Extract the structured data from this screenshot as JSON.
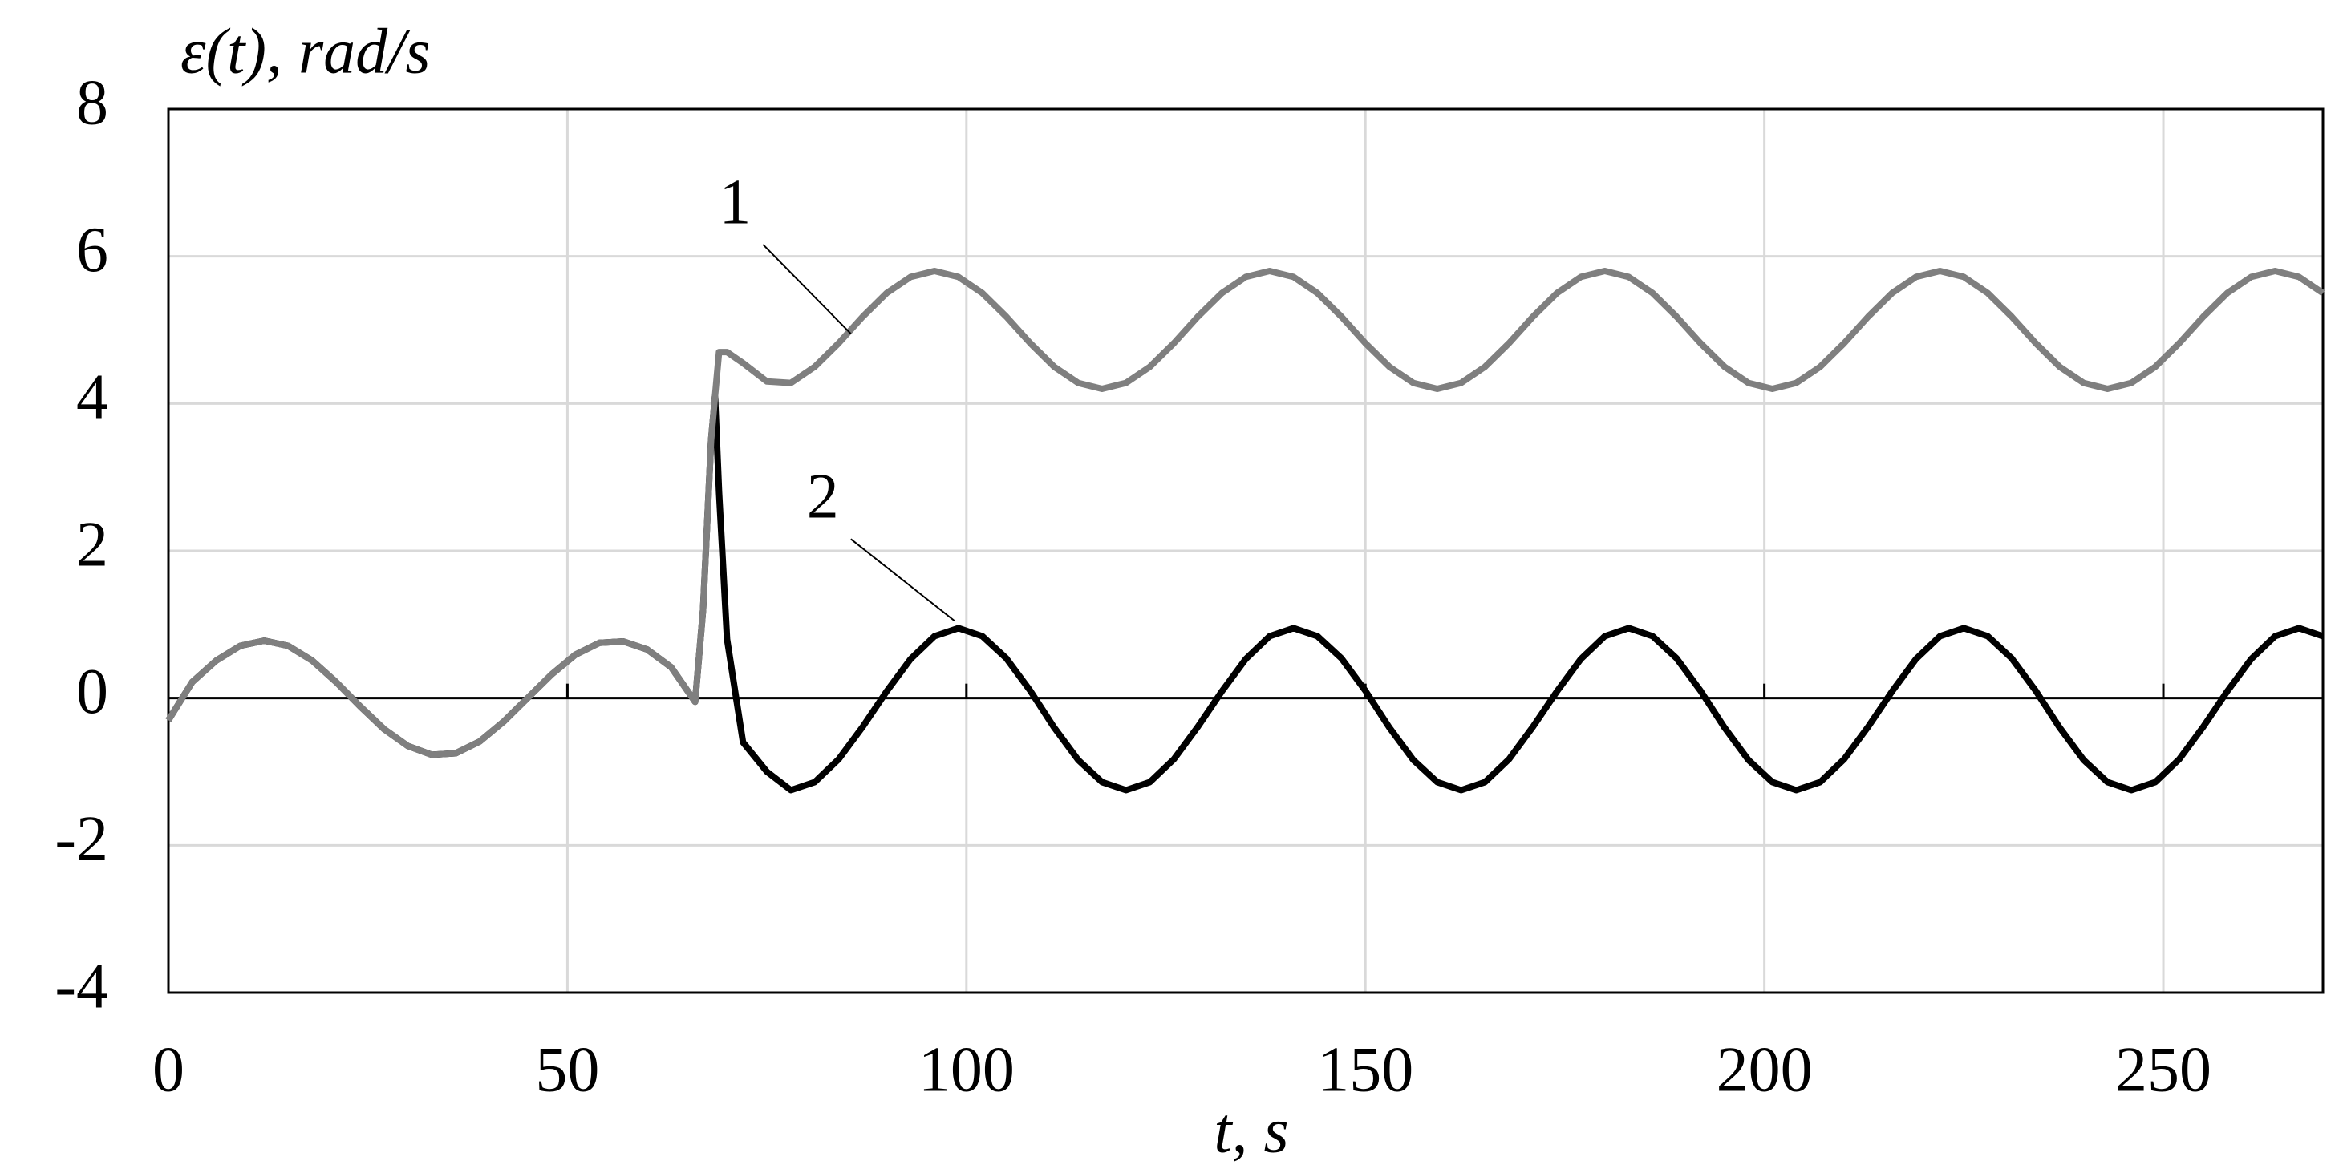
{
  "chart_data": {
    "type": "line",
    "y_label": "ε(t), rad/s",
    "x_label": "t, s",
    "xlim": [
      0,
      270
    ],
    "xticks": [
      0,
      50,
      100,
      150,
      200,
      250
    ],
    "ylim": [
      -4,
      8
    ],
    "yticks": [
      -4,
      -2,
      0,
      2,
      4,
      6,
      8
    ],
    "grid": true,
    "x": [
      0,
      3,
      6,
      9,
      12,
      15,
      18,
      21,
      24,
      27,
      30,
      33,
      36,
      39,
      42,
      45,
      48,
      51,
      54,
      57,
      60,
      63,
      66,
      67,
      68,
      68.5,
      69,
      70,
      72,
      75,
      78,
      81,
      84,
      87,
      90,
      93,
      96,
      99,
      102,
      105,
      108,
      111,
      114,
      117,
      120,
      123,
      126,
      129,
      132,
      135,
      138,
      141,
      144,
      147,
      150,
      153,
      156,
      159,
      162,
      165,
      168,
      171,
      174,
      177,
      180,
      183,
      186,
      189,
      192,
      195,
      198,
      201,
      204,
      207,
      210,
      213,
      216,
      219,
      222,
      225,
      228,
      231,
      234,
      237,
      240,
      243,
      246,
      249,
      252,
      255,
      258,
      261,
      264,
      267,
      270
    ],
    "series": [
      {
        "name": "1",
        "color": "#7f7f7f",
        "values": [
          -0.3,
          0.22,
          0.51,
          0.71,
          0.78,
          0.71,
          0.51,
          0.22,
          -0.11,
          -0.42,
          -0.65,
          -0.77,
          -0.75,
          -0.59,
          -0.32,
          0.0,
          0.32,
          0.59,
          0.75,
          0.77,
          0.66,
          0.42,
          -0.05,
          1.2,
          3.5,
          4.1,
          4.7,
          4.7,
          4.55,
          4.3,
          4.28,
          4.5,
          4.82,
          5.18,
          5.5,
          5.72,
          5.8,
          5.72,
          5.5,
          5.18,
          4.82,
          4.5,
          4.28,
          4.2,
          4.28,
          4.5,
          4.82,
          5.18,
          5.5,
          5.72,
          5.8,
          5.72,
          5.5,
          5.18,
          4.82,
          4.5,
          4.28,
          4.2,
          4.28,
          4.5,
          4.82,
          5.18,
          5.5,
          5.72,
          5.8,
          5.72,
          5.5,
          5.18,
          4.82,
          4.5,
          4.28,
          4.2,
          4.28,
          4.5,
          4.82,
          5.18,
          5.5,
          5.72,
          5.8,
          5.72,
          5.5,
          5.18,
          4.82,
          4.5,
          4.28,
          4.2,
          4.28,
          4.5,
          4.82,
          5.18,
          5.5,
          5.72,
          5.8,
          5.72,
          5.5
        ]
      },
      {
        "name": "2",
        "color": "#000000",
        "values": [
          -0.3,
          0.22,
          0.51,
          0.71,
          0.78,
          0.71,
          0.51,
          0.22,
          -0.11,
          -0.42,
          -0.65,
          -0.77,
          -0.75,
          -0.59,
          -0.32,
          0.0,
          0.32,
          0.59,
          0.75,
          0.77,
          0.66,
          0.42,
          -0.05,
          1.2,
          3.5,
          4.1,
          2.8,
          0.8,
          -0.6,
          -1.0,
          -1.25,
          -1.14,
          -0.83,
          -0.39,
          0.09,
          0.53,
          0.84,
          0.95,
          0.84,
          0.54,
          0.1,
          -0.4,
          -0.84,
          -1.14,
          -1.25,
          -1.14,
          -0.83,
          -0.39,
          0.09,
          0.53,
          0.84,
          0.95,
          0.84,
          0.54,
          0.1,
          -0.4,
          -0.84,
          -1.14,
          -1.25,
          -1.14,
          -0.83,
          -0.39,
          0.09,
          0.53,
          0.84,
          0.95,
          0.84,
          0.54,
          0.1,
          -0.4,
          -0.84,
          -1.14,
          -1.25,
          -1.14,
          -0.83,
          -0.39,
          0.09,
          0.53,
          0.84,
          0.95,
          0.84,
          0.54,
          0.1,
          -0.4,
          -0.84,
          -1.14,
          -1.25,
          -1.14,
          -0.83,
          -0.39,
          0.09,
          0.53,
          0.84,
          0.95,
          0.84
        ]
      }
    ]
  }
}
